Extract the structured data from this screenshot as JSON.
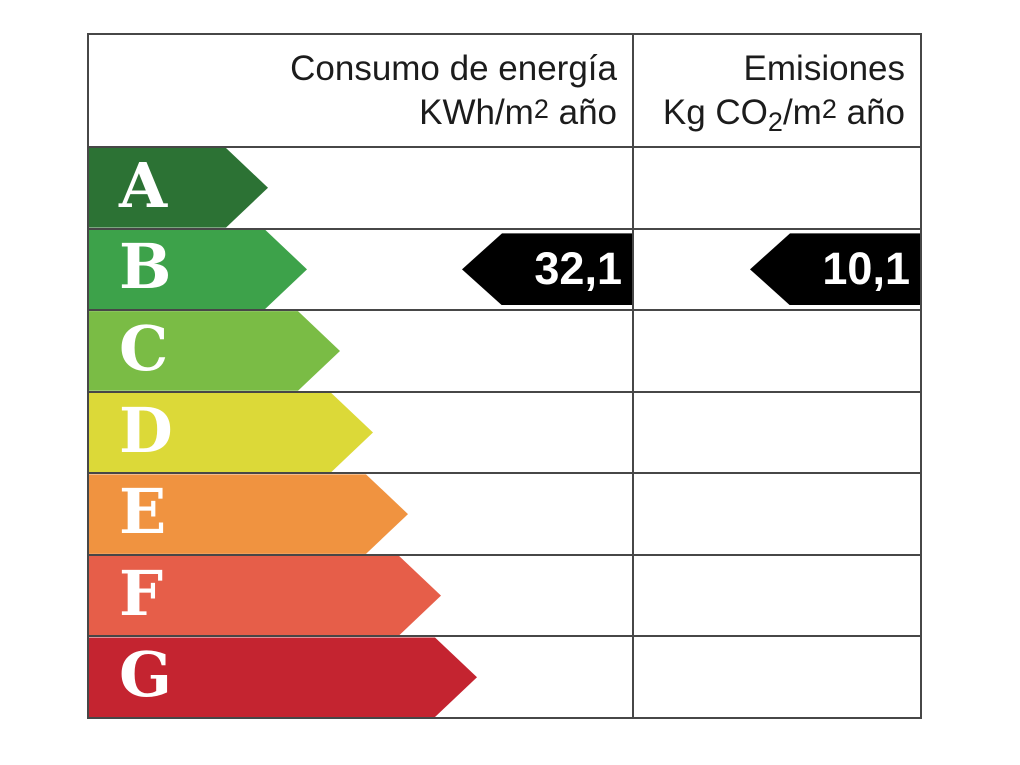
{
  "header": {
    "consumption": {
      "line1": "Consumo de energía",
      "unit_prefix": "KWh/m",
      "unit_sup": "2",
      "unit_suffix": " año"
    },
    "emissions": {
      "line1": "Emisiones",
      "unit_prefix": "Kg CO",
      "unit_sub": "2",
      "unit_mid": "/m",
      "unit_sup": "2",
      "unit_suffix": " año"
    }
  },
  "ratings": [
    {
      "label": "A",
      "color": "#2c7234",
      "arrow_width": 179
    },
    {
      "label": "B",
      "color": "#3da24a",
      "arrow_width": 218
    },
    {
      "label": "C",
      "color": "#7abc45",
      "arrow_width": 251
    },
    {
      "label": "D",
      "color": "#dcd938",
      "arrow_width": 284
    },
    {
      "label": "E",
      "color": "#f09340",
      "arrow_width": 319
    },
    {
      "label": "F",
      "color": "#e65e49",
      "arrow_width": 352
    },
    {
      "label": "G",
      "color": "#c42430",
      "arrow_width": 388
    }
  ],
  "result": {
    "rating": "B",
    "consumption_value": "32,1",
    "emissions_value": "10,1",
    "marker_color": "#000000",
    "grid_color": "#474747"
  },
  "chart_data": {
    "type": "table",
    "columns": [
      "Consumo de energía KWh/m2 año",
      "Emisiones Kg CO2/m2 año"
    ],
    "rating_scale": [
      "A",
      "B",
      "C",
      "D",
      "E",
      "F",
      "G"
    ],
    "rating_colors": [
      "#2c7234",
      "#3da24a",
      "#7abc45",
      "#dcd938",
      "#f09340",
      "#e65e49",
      "#c42430"
    ],
    "assigned_rating": "B",
    "values": {
      "consumo_energia_kwh_m2_ano": 32.1,
      "emisiones_kg_co2_m2_ano": 10.1
    },
    "legend_position": "none",
    "grid": true
  }
}
